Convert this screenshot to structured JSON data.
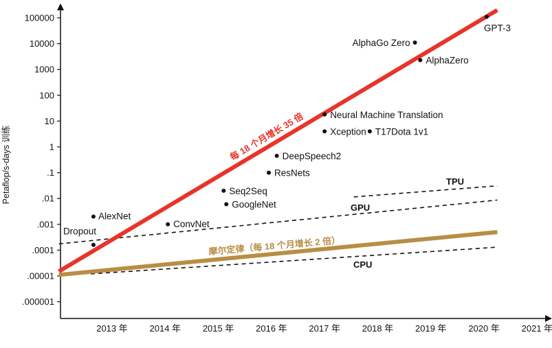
{
  "chart_data": {
    "type": "scatter",
    "ylabel": "Petaflop/s-days 训练",
    "y_scale": "log",
    "y_ticks": [
      "100000",
      "10000",
      "1000",
      "100",
      "10",
      "1",
      ".1",
      ".01",
      ".001",
      ".0001",
      ".00001",
      ".000001"
    ],
    "x_ticks": [
      "2013 年",
      "2014 年",
      "2015 年",
      "2016 年",
      "2017 年",
      "2018 年",
      "2019 年",
      "2020 年",
      "2021 年"
    ],
    "points": [
      {
        "name": "Dropout",
        "x": 2012.65,
        "y": 0.00016
      },
      {
        "name": "AlexNet",
        "x": 2012.65,
        "y": 0.002
      },
      {
        "name": "ConvNet",
        "x": 2014.05,
        "y": 0.001
      },
      {
        "name": "Seq2Seq",
        "x": 2015.1,
        "y": 0.02
      },
      {
        "name": "GoogleNet",
        "x": 2015.15,
        "y": 0.006
      },
      {
        "name": "ResNets",
        "x": 2015.95,
        "y": 0.1
      },
      {
        "name": "DeepSpeech2",
        "x": 2016.1,
        "y": 0.45
      },
      {
        "name": "Neural Machine Translation",
        "x": 2017.0,
        "y": 18
      },
      {
        "name": "Xception",
        "x": 2017.0,
        "y": 4
      },
      {
        "name": "T17Dota 1v1",
        "x": 2017.85,
        "y": 4
      },
      {
        "name": "AlphaGo Zero",
        "x": 2018.7,
        "y": 11000
      },
      {
        "name": "AlphaZero",
        "x": 2018.8,
        "y": 2300
      },
      {
        "name": "GPT-3",
        "x": 2020.05,
        "y": 110000
      }
    ],
    "trend_lines": [
      {
        "name": "每 18 个月增长 35 倍",
        "color": "#e8342b",
        "style": "solid",
        "x": [
          2012.0,
          2020.25
        ],
        "y": [
          1.5e-05,
          200000
        ]
      },
      {
        "name": "摩尔定律（每 18 个月增长 2 倍）",
        "color": "#b88e45",
        "style": "solid",
        "x": [
          2012.0,
          2020.25
        ],
        "y": [
          1.1e-05,
          0.0005
        ]
      },
      {
        "name": "TPU",
        "color": "#111111",
        "style": "dashed",
        "x": [
          2017.55,
          2020.25
        ],
        "y": [
          0.0115,
          0.031
        ]
      },
      {
        "name": "GPU",
        "color": "#111111",
        "style": "dashed",
        "x": [
          2012.0,
          2020.25
        ],
        "y": [
          0.000175,
          0.0087
        ]
      },
      {
        "name": "CPU",
        "color": "#111111",
        "style": "dashed",
        "x": [
          2012.6,
          2020.25
        ],
        "y": [
          1.2e-05,
          0.00013
        ]
      }
    ]
  }
}
